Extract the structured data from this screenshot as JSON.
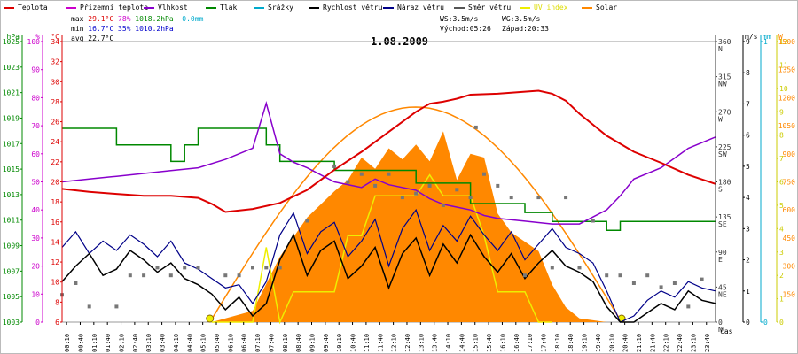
{
  "chart_data": {
    "type": "line",
    "title": "1.08.2009",
    "xlabel": "čas",
    "legend": [
      {
        "label": "Teplota",
        "color": "#dd0000"
      },
      {
        "label": "Přízemní teplota",
        "color": "#cc00cc"
      },
      {
        "label": "Vlhkost",
        "color": "#8800cc"
      },
      {
        "label": "Tlak",
        "color": "#008800"
      },
      {
        "label": "Srážky",
        "color": "#00aacc"
      },
      {
        "label": "Rychlost větru",
        "color": "#000000"
      },
      {
        "label": "Náraz větru",
        "color": "#000088"
      },
      {
        "label": "Směr větru",
        "color": "#555555"
      },
      {
        "label": "UV index",
        "color": "#eeee00"
      },
      {
        "label": "Solar",
        "color": "#ff8800"
      }
    ],
    "stats": {
      "max_label": "max",
      "max_temp": "29.1°C",
      "max_hum": "78%",
      "max_press": "1018.2hPa",
      "max_rain": "0.0mm",
      "min_label": "min",
      "min_temp": "16.7°C",
      "min_hum": "35%",
      "min_press": "1010.2hPa",
      "avg_label": "avg",
      "avg_temp": "22.7°C",
      "ws": "WS:3.5m/s",
      "wg": "WG:3.5m/s",
      "sunrise": "Východ:05:26",
      "sunset": "Západ:20:33"
    },
    "axes": {
      "hpa": {
        "unit": "hPa",
        "color": "#008800",
        "ticks": [
          "1003",
          "1005",
          "1007",
          "1009",
          "1011",
          "1013",
          "1015",
          "1017",
          "1019",
          "1021",
          "1023",
          "1025"
        ]
      },
      "pct": {
        "unit": "%",
        "color": "#cc00cc",
        "ticks": [
          "0",
          "10",
          "20",
          "30",
          "40",
          "50",
          "60",
          "70",
          "80",
          "90",
          "100"
        ]
      },
      "deg": {
        "unit": "°C",
        "color": "#dd0000",
        "ticks": [
          "6",
          "8",
          "10",
          "12",
          "14",
          "16",
          "18",
          "20",
          "22",
          "24",
          "26",
          "28",
          "30",
          "32",
          "34"
        ]
      },
      "dir": {
        "ticks": [
          "0",
          "45",
          "90",
          "135",
          "180",
          "225",
          "270",
          "315",
          "360"
        ],
        "names": [
          "N",
          "NE",
          "E",
          "SE",
          "S",
          "SW",
          "W",
          "NW",
          "N"
        ]
      },
      "ms": {
        "unit": "m/s",
        "ticks": [
          "0",
          "1",
          "2",
          "3",
          "4",
          "5",
          "6",
          "7",
          "8",
          "9"
        ]
      },
      "mm": {
        "unit": "mm",
        "color": "#00aacc",
        "ticks": [
          "0",
          "1"
        ]
      },
      "uv": {
        "unit": "UV",
        "color": "#cccc00",
        "ticks": [
          "0",
          "1",
          "2",
          "3",
          "4",
          "5",
          "6",
          "7",
          "8",
          "9",
          "10",
          "11",
          "12"
        ]
      },
      "w": {
        "unit": "W",
        "color": "#ff8800",
        "ticks": [
          "0",
          "150",
          "300",
          "450",
          "600",
          "750",
          "900",
          "1050",
          "1200",
          "1350",
          "1500"
        ]
      }
    },
    "x_ticks": [
      "00:10",
      "00:40",
      "01:10",
      "01:40",
      "02:10",
      "02:40",
      "03:10",
      "03:40",
      "04:10",
      "04:40",
      "05:10",
      "05:40",
      "06:10",
      "06:40",
      "07:10",
      "07:40",
      "08:10",
      "08:40",
      "09:10",
      "09:40",
      "10:10",
      "10:40",
      "11:10",
      "11:40",
      "12:10",
      "12:40",
      "13:10",
      "13:40",
      "14:10",
      "14:40",
      "15:10",
      "15:40",
      "16:10",
      "16:40",
      "17:10",
      "17:40",
      "18:10",
      "18:40",
      "19:10",
      "19:40",
      "20:10",
      "20:40",
      "21:10",
      "21:40",
      "22:10",
      "22:40",
      "23:10",
      "23:40"
    ],
    "series": {
      "teplota": {
        "name": "Teplota",
        "x": [
          0,
          1,
          2,
          3,
          4,
          5,
          5.5,
          6,
          7,
          8,
          9,
          10,
          11,
          12,
          13,
          13.5,
          14,
          14.5,
          15,
          16,
          17,
          17.5,
          18,
          18.5,
          19,
          20,
          21,
          22,
          23,
          24
        ],
        "y": [
          19.3,
          19,
          18.8,
          18.6,
          18.6,
          18.4,
          17.8,
          17,
          17.3,
          17.9,
          19.2,
          21.2,
          23,
          25,
          27,
          27.8,
          28,
          28.3,
          28.7,
          28.8,
          29,
          29.1,
          28.8,
          28.1,
          26.8,
          24.6,
          23,
          21.9,
          20.7,
          19.8
        ]
      },
      "vlhkost": {
        "name": "Vlhkost",
        "x": [
          0,
          1,
          2,
          3,
          4,
          5,
          6,
          7,
          7.5,
          8,
          8.5,
          9,
          10,
          11,
          11.5,
          12,
          13,
          13.5,
          14,
          15,
          15.5,
          16,
          17,
          18,
          19,
          20,
          20.5,
          21,
          22,
          23,
          24
        ],
        "y": [
          50,
          51,
          52,
          53,
          54,
          55,
          58,
          62,
          78,
          60,
          57,
          55,
          50,
          48,
          51,
          49,
          47,
          44,
          42,
          40,
          38,
          37,
          36,
          35,
          35,
          40,
          45,
          51,
          55,
          62,
          66
        ]
      },
      "tlak": {
        "name": "Tlak",
        "x": [
          0,
          2,
          2,
          4,
          4,
          4.5,
          4.5,
          5,
          5,
          7.5,
          7.5,
          8,
          8,
          10,
          10,
          13,
          13,
          15,
          15,
          17,
          17,
          18,
          18,
          20,
          20,
          20.5,
          20.5,
          24
        ],
        "y": [
          1018.2,
          1018.2,
          1016.9,
          1016.9,
          1015.6,
          1015.6,
          1016.9,
          1016.9,
          1018.2,
          1018.2,
          1016.9,
          1016.9,
          1015.6,
          1015.6,
          1014.9,
          1014.9,
          1013.9,
          1013.9,
          1012.3,
          1012.3,
          1011.6,
          1011.6,
          1010.9,
          1010.9,
          1010.2,
          1010.2,
          1010.9,
          1010.9
        ]
      },
      "rychlost": {
        "name": "Rychlost větru",
        "x": [
          0,
          0.5,
          1,
          1.5,
          2,
          2.5,
          3,
          3.5,
          4,
          4.5,
          5,
          5.5,
          6,
          6.5,
          7,
          7.5,
          8,
          8.5,
          9,
          9.5,
          10,
          10.5,
          11,
          11.5,
          12,
          12.5,
          13,
          13.5,
          14,
          14.5,
          15,
          15.5,
          16,
          16.5,
          17,
          17.5,
          18,
          18.5,
          19,
          19.5,
          20,
          20.5,
          21,
          21.5,
          22,
          22.5,
          23,
          23.5,
          24
        ],
        "y": [
          1.3,
          1.8,
          2.2,
          1.5,
          1.7,
          2.3,
          2.0,
          1.6,
          1.9,
          1.4,
          1.2,
          0.9,
          0.4,
          0.8,
          0.2,
          0.6,
          2.0,
          2.8,
          1.5,
          2.3,
          2.6,
          1.4,
          1.8,
          2.4,
          1.1,
          2.2,
          2.7,
          1.5,
          2.5,
          1.9,
          2.8,
          2.1,
          1.6,
          2.2,
          1.4,
          1.9,
          2.3,
          1.8,
          1.6,
          1.3,
          0.5,
          0,
          0,
          0.3,
          0.6,
          0.4,
          1.0,
          0.7,
          0.6
        ]
      },
      "naraz": {
        "name": "Náraz větru",
        "x": [
          0,
          0.5,
          1,
          1.5,
          2,
          2.5,
          3,
          3.5,
          4,
          4.5,
          5,
          5.5,
          6,
          6.5,
          7,
          7.5,
          8,
          8.5,
          9,
          9.5,
          10,
          10.5,
          11,
          11.5,
          12,
          12.5,
          13,
          13.5,
          14,
          14.5,
          15,
          15.5,
          16,
          16.5,
          17,
          17.5,
          18,
          18.5,
          19,
          19.5,
          20,
          20.5,
          21,
          21.5,
          22,
          22.5,
          23,
          23.5,
          24
        ],
        "y": [
          2.4,
          2.9,
          2.2,
          2.6,
          2.3,
          2.8,
          2.5,
          2.1,
          2.6,
          1.9,
          1.7,
          1.4,
          1.1,
          1.2,
          0.6,
          1.3,
          2.8,
          3.5,
          2.2,
          2.9,
          3.2,
          2.1,
          2.6,
          3.3,
          1.8,
          3.0,
          3.6,
          2.3,
          3.1,
          2.6,
          3.4,
          2.8,
          2.3,
          2.9,
          2.0,
          2.5,
          3.0,
          2.4,
          2.2,
          1.9,
          1.0,
          0,
          0.2,
          0.7,
          1.0,
          0.8,
          1.3,
          1.1,
          1.0
        ]
      },
      "smer": {
        "name": "Směr větru",
        "x": [
          0,
          0.5,
          1,
          2,
          2.5,
          3,
          3.5,
          4,
          4.5,
          5,
          6,
          6.5,
          7,
          7.5,
          8,
          9,
          10,
          10.5,
          11,
          11.5,
          12,
          12.5,
          13,
          13.5,
          14,
          14.5,
          15,
          15.2,
          15.5,
          16,
          16.5,
          17,
          17.5,
          18,
          18.5,
          19,
          19.5,
          20,
          20.5,
          21,
          21.5,
          22,
          22.5,
          23,
          23.5
        ],
        "y": [
          35,
          50,
          20,
          20,
          60,
          60,
          70,
          60,
          70,
          70,
          60,
          60,
          70,
          70,
          70,
          130,
          200,
          180,
          190,
          175,
          190,
          160,
          165,
          175,
          150,
          170,
          160,
          250,
          190,
          175,
          160,
          60,
          160,
          70,
          160,
          70,
          130,
          60,
          60,
          50,
          60,
          45,
          50,
          20,
          55
        ]
      },
      "uv": {
        "name": "UV index",
        "x": [
          5.5,
          7,
          7.5,
          8,
          8.5,
          9,
          10,
          10.5,
          11,
          11.5,
          12,
          13,
          13.5,
          14,
          15,
          15.5,
          16,
          17,
          17.5,
          18
        ],
        "y": [
          0,
          0,
          3.2,
          0,
          1.3,
          1.3,
          1.3,
          3.7,
          3.7,
          5.4,
          5.4,
          5.4,
          6.3,
          5.4,
          5.4,
          3.7,
          1.3,
          1.3,
          0,
          0
        ]
      },
      "solar": {
        "name": "Solar",
        "x": [
          5.5,
          6,
          7,
          8,
          9,
          10,
          10.5,
          11,
          11.5,
          12,
          12.5,
          13,
          13.5,
          14,
          14.5,
          15,
          15.5,
          16,
          16.5,
          17,
          17.5,
          18,
          18.5,
          19,
          20
        ],
        "y": [
          0,
          20,
          60,
          350,
          560,
          700,
          760,
          880,
          820,
          930,
          870,
          950,
          860,
          1020,
          760,
          900,
          880,
          580,
          480,
          430,
          380,
          200,
          80,
          20,
          0
        ]
      },
      "sun_curve": {
        "name": "Solar",
        "x": [
          5.43,
          20.55
        ],
        "peak": 1150
      }
    }
  }
}
